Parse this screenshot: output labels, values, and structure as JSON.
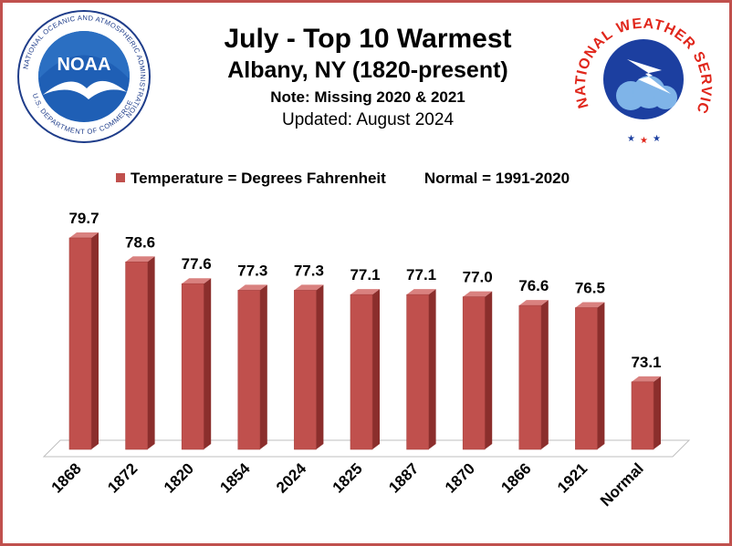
{
  "header": {
    "title": "July - Top 10 Warmest",
    "subtitle": "Albany, NY (1820-present)",
    "note": "Note: Missing 2020 & 2021",
    "updated": "Updated: August 2024"
  },
  "legend": {
    "series_label": "Temperature = Degrees Fahrenheit",
    "normal_label": "Normal = 1991-2020"
  },
  "logos": {
    "noaa_center": "NOAA",
    "noaa_ring": "NATIONAL OCEANIC AND ATMOSPHERIC ADMINISTRATION",
    "noaa_ring_bottom": "U.S. DEPARTMENT OF COMMERCE",
    "nws_ring": "NATIONAL WEATHER SERVICE"
  },
  "colors": {
    "bar": "#c0504d",
    "bar_side": "#8b2e2c",
    "bar_top": "#d9817f",
    "frame": "#c0504d"
  },
  "chart_data": {
    "type": "bar",
    "categories": [
      "1868",
      "1872",
      "1820",
      "1854",
      "2024",
      "1825",
      "1887",
      "1870",
      "1866",
      "1921",
      "Normal"
    ],
    "values": [
      79.7,
      78.6,
      77.6,
      77.3,
      77.3,
      77.1,
      77.1,
      77.0,
      76.6,
      76.5,
      73.1
    ],
    "value_labels": [
      "79.7",
      "78.6",
      "77.6",
      "77.3",
      "77.3",
      "77.1",
      "77.1",
      "77.0",
      "76.6",
      "76.5",
      "73.1"
    ],
    "title": "July - Top 10 Warmest",
    "ylim": [
      70,
      80
    ],
    "grid": false,
    "legend_position": "top"
  }
}
